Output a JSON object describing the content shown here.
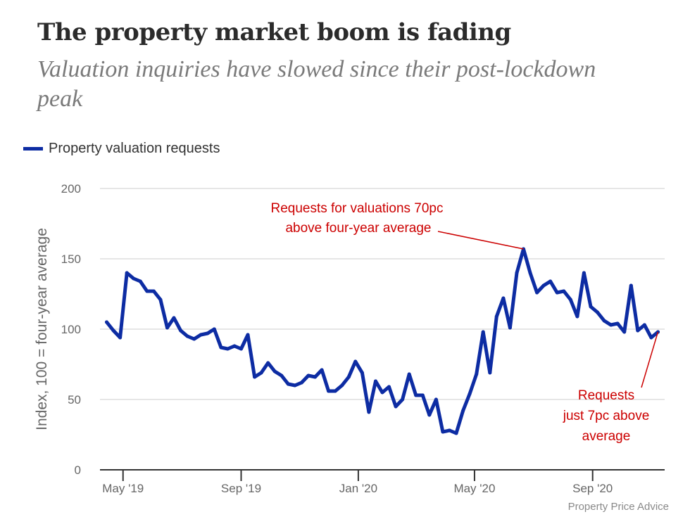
{
  "header": {
    "title": "The property market boom is fading",
    "subtitle": "Valuation inquiries have slowed since their post-lockdown peak"
  },
  "legend": {
    "label": "Property valuation requests",
    "color": "#0d2ca3"
  },
  "source": "Property Price Advice",
  "chart_data": {
    "type": "line",
    "title": "The property market boom is fading",
    "subtitle": "Valuation inquiries have slowed since their post-lockdown peak",
    "ylabel": "Index, 100 = four-year average",
    "xlabel": "",
    "ylim": [
      0,
      200
    ],
    "yticks": [
      0,
      50,
      100,
      150,
      200
    ],
    "xticks": [
      {
        "label": "May '19",
        "date": "2019-05-01"
      },
      {
        "label": "Sep '19",
        "date": "2019-09-01"
      },
      {
        "label": "Jan '20",
        "date": "2020-01-01"
      },
      {
        "label": "May '20",
        "date": "2020-05-01"
      },
      {
        "label": "Sep '20",
        "date": "2020-09-01"
      }
    ],
    "xlim": [
      "2019-04-07",
      "2020-11-15"
    ],
    "grid": true,
    "legend_position": "top-left",
    "series": [
      {
        "name": "Property valuation requests",
        "color": "#0d2ca3",
        "x": [
          "2019-04-14",
          "2019-04-21",
          "2019-04-28",
          "2019-05-05",
          "2019-05-12",
          "2019-05-19",
          "2019-05-26",
          "2019-06-02",
          "2019-06-09",
          "2019-06-16",
          "2019-06-23",
          "2019-06-30",
          "2019-07-07",
          "2019-07-14",
          "2019-07-21",
          "2019-07-28",
          "2019-08-04",
          "2019-08-11",
          "2019-08-18",
          "2019-08-25",
          "2019-09-01",
          "2019-09-08",
          "2019-09-15",
          "2019-09-22",
          "2019-09-29",
          "2019-10-06",
          "2019-10-13",
          "2019-10-20",
          "2019-10-27",
          "2019-11-03",
          "2019-11-10",
          "2019-11-17",
          "2019-11-24",
          "2019-12-01",
          "2019-12-08",
          "2019-12-15",
          "2019-12-22",
          "2019-12-29",
          "2020-01-05",
          "2020-01-12",
          "2020-01-19",
          "2020-01-26",
          "2020-02-02",
          "2020-02-09",
          "2020-02-16",
          "2020-02-23",
          "2020-03-01",
          "2020-03-08",
          "2020-03-15",
          "2020-03-22",
          "2020-03-29",
          "2020-04-05",
          "2020-04-12",
          "2020-04-19",
          "2020-04-26",
          "2020-05-03",
          "2020-05-10",
          "2020-05-17",
          "2020-05-24",
          "2020-05-31",
          "2020-06-07",
          "2020-06-14",
          "2020-06-21",
          "2020-06-28",
          "2020-07-05",
          "2020-07-12",
          "2020-07-19",
          "2020-07-26",
          "2020-08-02",
          "2020-08-09",
          "2020-08-16",
          "2020-08-23",
          "2020-08-30",
          "2020-09-06",
          "2020-09-13",
          "2020-09-20",
          "2020-09-27",
          "2020-10-04",
          "2020-10-11",
          "2020-10-18",
          "2020-10-25",
          "2020-11-01",
          "2020-11-08"
        ],
        "y": [
          105,
          99,
          94,
          140,
          136,
          134,
          127,
          127,
          121,
          101,
          108,
          99,
          95,
          93,
          96,
          97,
          100,
          87,
          86,
          88,
          86,
          96,
          66,
          69,
          76,
          70,
          67,
          61,
          60,
          62,
          67,
          66,
          71,
          56,
          56,
          60,
          66,
          77,
          69,
          41,
          63,
          55,
          59,
          45,
          50,
          68,
          53,
          53,
          39,
          50,
          27,
          28,
          26,
          42,
          54,
          68,
          98,
          69,
          109,
          122,
          101,
          140,
          157,
          140,
          126,
          131,
          134,
          126,
          127,
          121,
          109,
          140,
          116,
          112,
          106,
          103,
          104,
          98,
          131,
          99,
          103,
          94,
          98
        ]
      }
    ],
    "annotations": [
      {
        "text": [
          "Requests for valuations 70pc",
          "above four-year average"
        ]
      },
      {
        "text": [
          "Requests",
          "just 7pc above",
          "average"
        ]
      }
    ]
  }
}
